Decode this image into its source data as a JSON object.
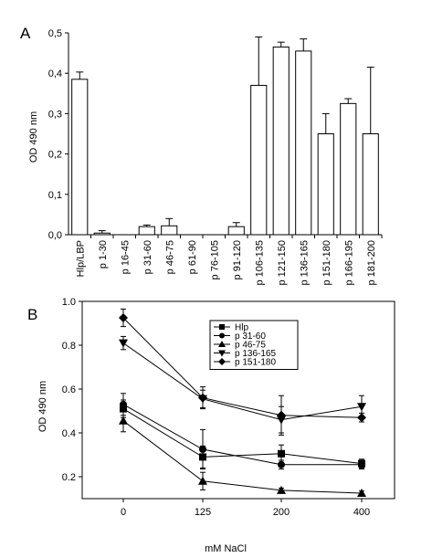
{
  "chart_data": [
    {
      "panel_label": "A",
      "type": "bar",
      "ylabel": "OD 490 nm",
      "xlabel": "",
      "ylim": [
        0,
        0.5
      ],
      "yticks": [
        "0,0",
        "0,1",
        "0,2",
        "0,3",
        "0,4",
        "0,5"
      ],
      "grid": false,
      "bar_fill": "#ffffff",
      "bar_stroke": "#000000",
      "categories": [
        "Hlp/LBP",
        "p 1-30",
        "p 16-45",
        "p 31-60",
        "p 46-75",
        "p 61-90",
        "p 76-105",
        "p 91-120",
        "p 106-135",
        "p 121-150",
        "p 136-165",
        "p 151-180",
        "p 166-195",
        "p 181-200"
      ],
      "values": [
        0.385,
        0.004,
        0.0,
        0.02,
        0.022,
        0.0,
        0.0,
        0.02,
        0.37,
        0.465,
        0.455,
        0.25,
        0.325,
        0.25
      ],
      "errors": [
        0.018,
        0.006,
        0.0,
        0.004,
        0.018,
        0.0,
        0.0,
        0.01,
        0.12,
        0.012,
        0.03,
        0.05,
        0.012,
        0.165
      ]
    },
    {
      "panel_label": "B",
      "type": "line",
      "ylabel": "OD 490 nm",
      "xlabel": "mM NaCl",
      "x": [
        "0",
        "125",
        "200",
        "400"
      ],
      "ylim": [
        0.1,
        1.0
      ],
      "yticks": [
        "0.2",
        "0.4",
        "0.6",
        "0.8",
        "1.0"
      ],
      "grid": false,
      "legend_position": "top-center",
      "series": [
        {
          "name": "Hlp",
          "marker": "square",
          "values": [
            0.51,
            0.29,
            0.305,
            0.26
          ],
          "errors": [
            0.04,
            0.05,
            0.04,
            0.02
          ]
        },
        {
          "name": "p 31-60",
          "marker": "circle",
          "values": [
            0.53,
            0.325,
            0.255,
            0.255
          ],
          "errors": [
            0.05,
            0.09,
            0.02,
            0.02
          ]
        },
        {
          "name": "p 46-75",
          "marker": "triangle-up",
          "values": [
            0.455,
            0.18,
            0.138,
            0.125
          ],
          "errors": [
            0.05,
            0.04,
            0.01,
            0.01
          ]
        },
        {
          "name": "p 136-165",
          "marker": "triangle-down",
          "values": [
            0.81,
            0.555,
            0.46,
            0.52
          ],
          "errors": [
            0.03,
            0.04,
            0.06,
            0.05
          ]
        },
        {
          "name": "p 151-180",
          "marker": "diamond",
          "values": [
            0.925,
            0.56,
            0.48,
            0.47
          ],
          "errors": [
            0.04,
            0.05,
            0.09,
            0.02
          ]
        }
      ]
    }
  ]
}
